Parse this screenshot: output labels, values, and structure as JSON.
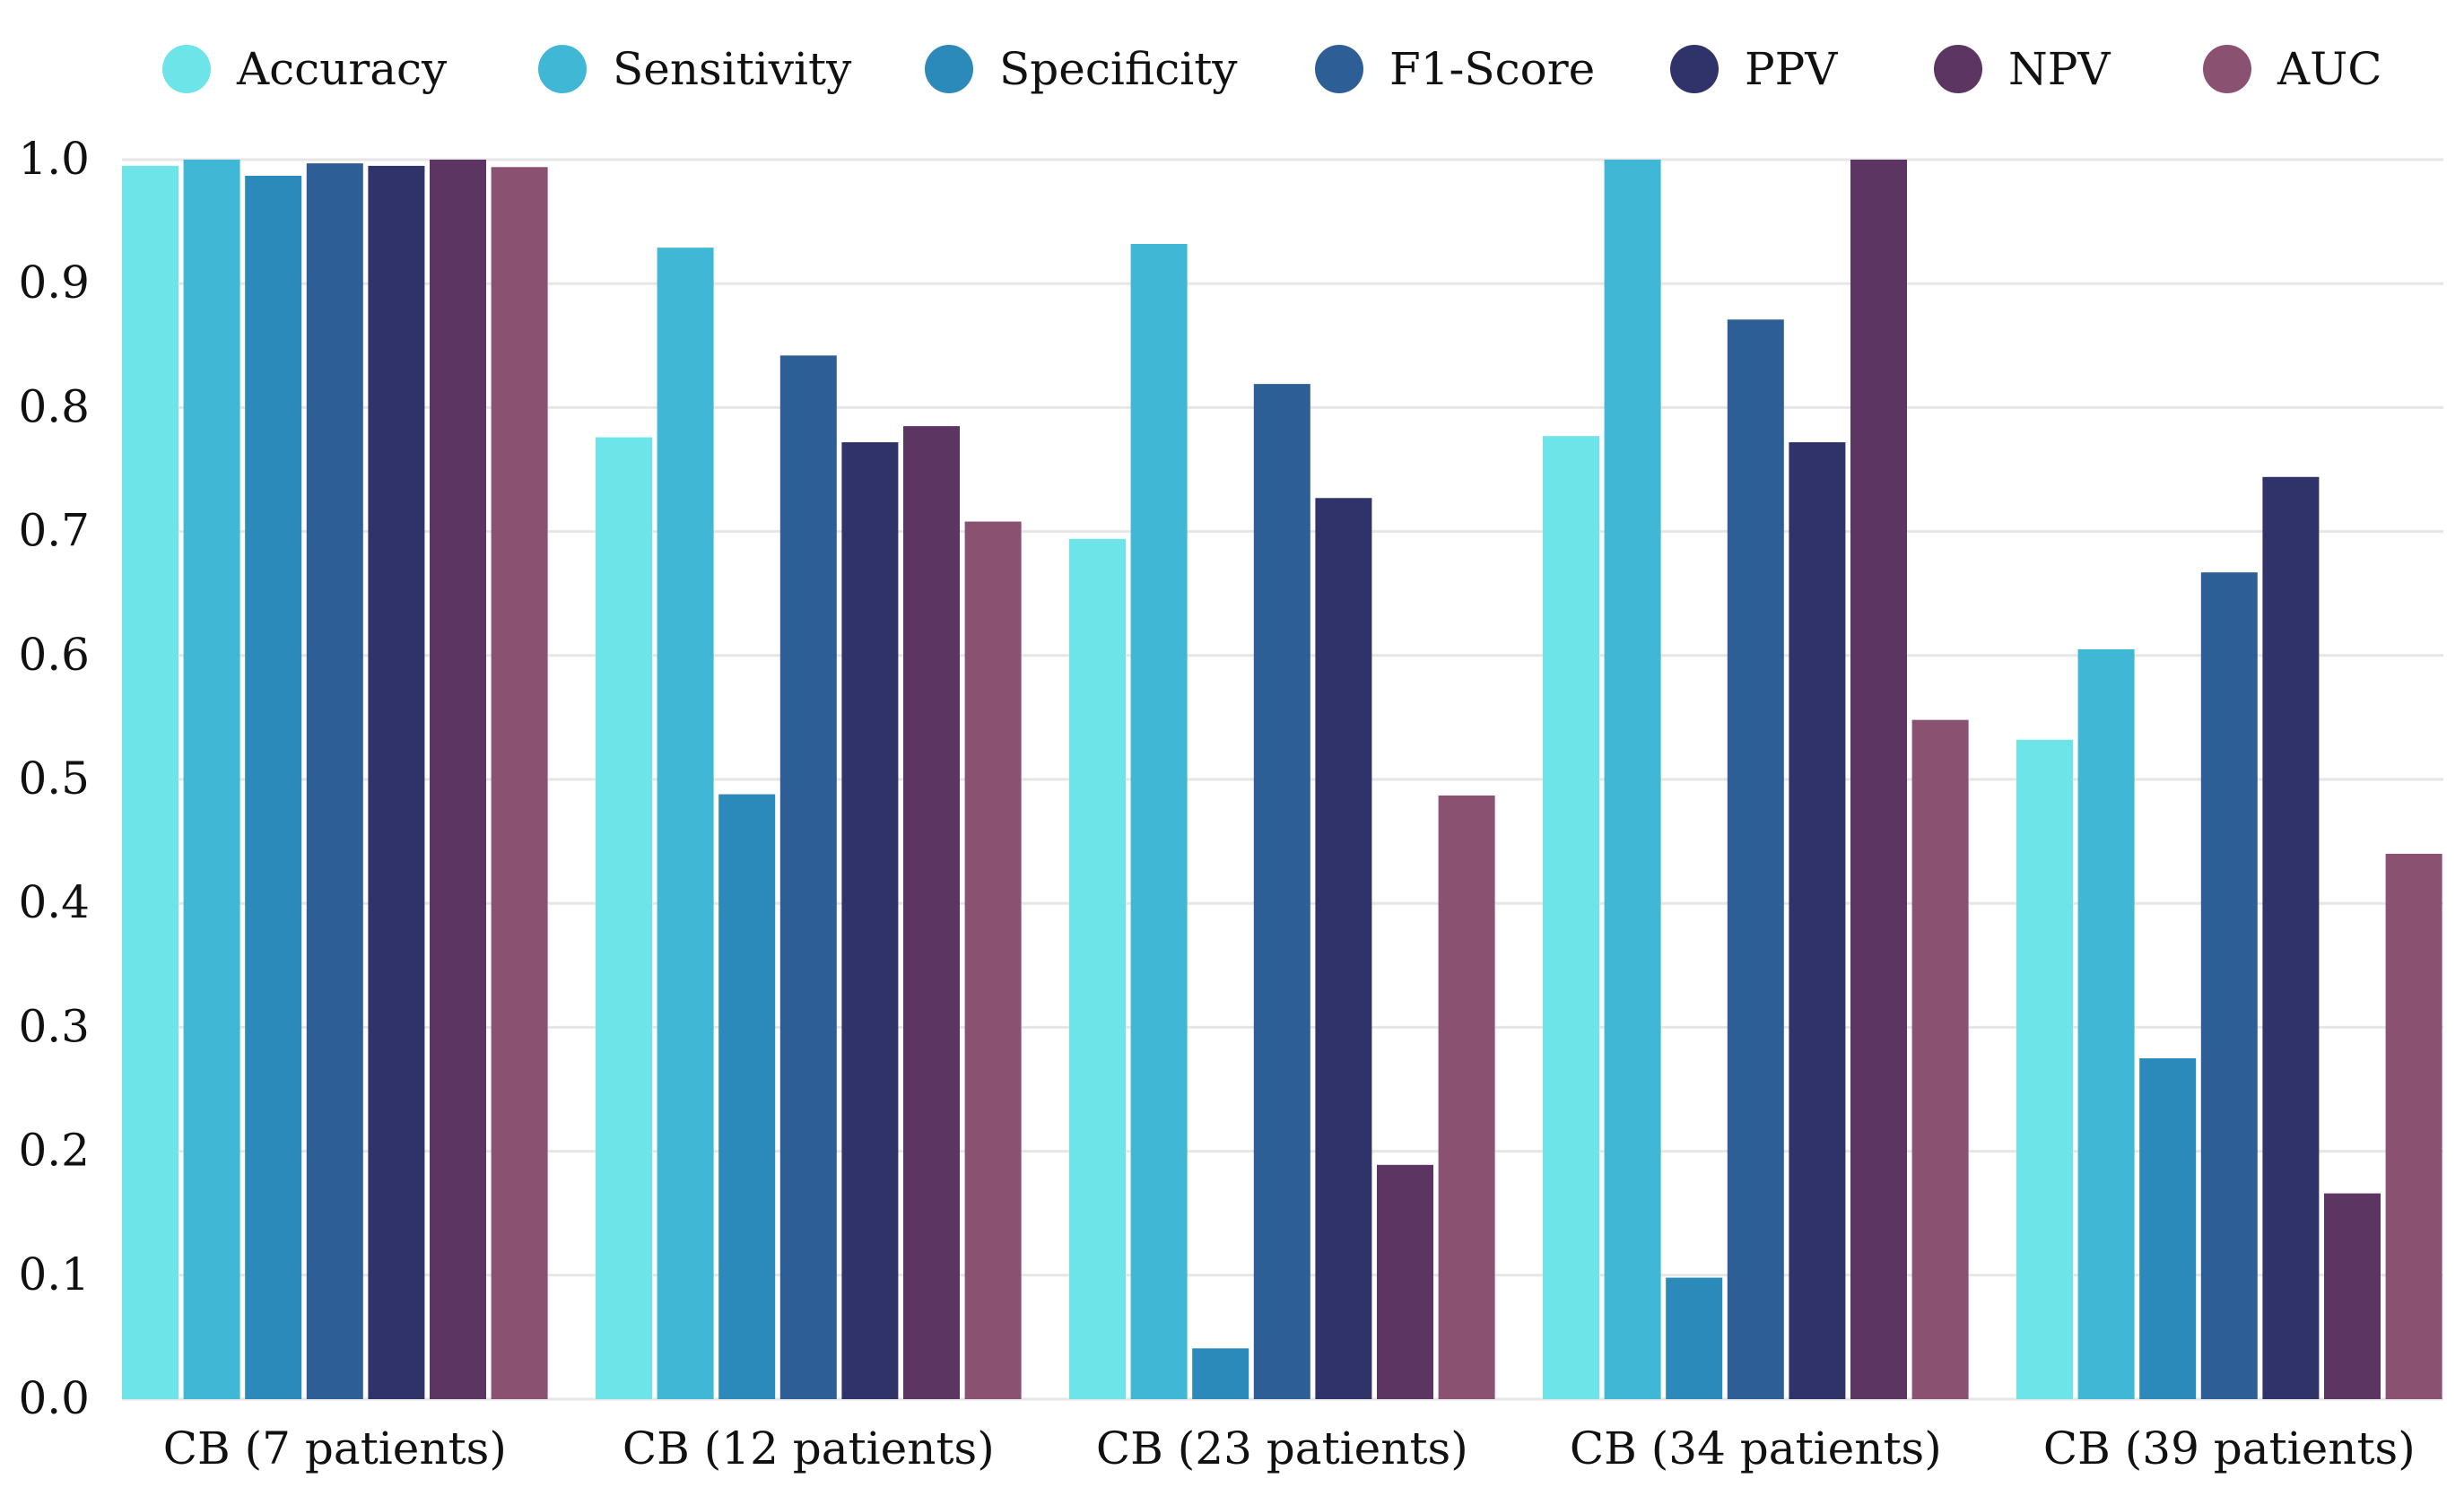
{
  "chart_data": {
    "type": "bar",
    "title": "",
    "xlabel": "",
    "ylabel": "",
    "ylim": [
      0,
      1.0
    ],
    "yticks": [
      "0.0",
      "0.1",
      "0.2",
      "0.3",
      "0.4",
      "0.5",
      "0.6",
      "0.7",
      "0.8",
      "0.9",
      "1.0"
    ],
    "grid": true,
    "legend_position": "top",
    "categories": [
      "CB (7 patients)",
      "CB (12 patients)",
      "CB (23 patients)",
      "CB (34 patients)",
      "CB (39 patients)"
    ],
    "series": [
      {
        "name": "Accuracy",
        "color": "#6ce4e8",
        "values": [
          0.995,
          0.776,
          0.694,
          0.777,
          0.532
        ]
      },
      {
        "name": "Sensitivity",
        "color": "#41b7d6",
        "values": [
          1.0,
          0.929,
          0.932,
          1.0,
          0.605
        ]
      },
      {
        "name": "Specificity",
        "color": "#2c8aba",
        "values": [
          0.987,
          0.488,
          0.041,
          0.098,
          0.275
        ]
      },
      {
        "name": "F1-Score",
        "color": "#2e5e96",
        "values": [
          0.997,
          0.842,
          0.819,
          0.871,
          0.667
        ]
      },
      {
        "name": "PPV",
        "color": "#30336a",
        "values": [
          0.995,
          0.772,
          0.727,
          0.772,
          0.744
        ]
      },
      {
        "name": "NPV",
        "color": "#5c3563",
        "values": [
          1.0,
          0.785,
          0.189,
          1.0,
          0.166
        ]
      },
      {
        "name": "AUC",
        "color": "#8a5270",
        "values": [
          0.994,
          0.708,
          0.487,
          0.548,
          0.44
        ]
      }
    ]
  }
}
